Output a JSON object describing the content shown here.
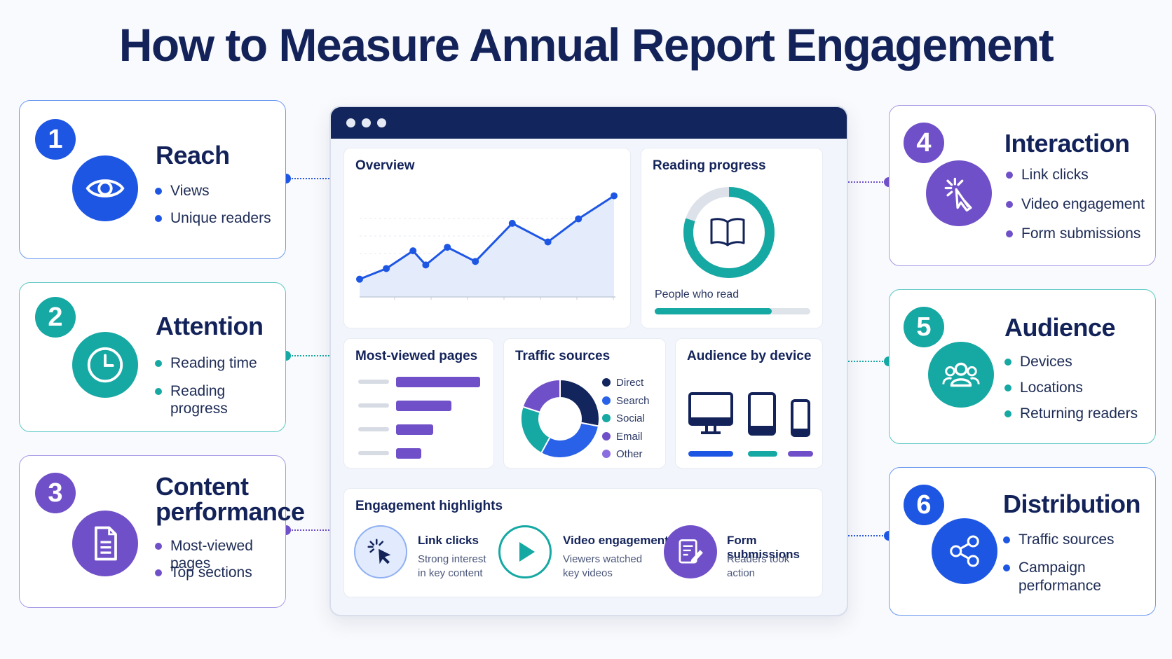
{
  "title": "How to Measure Annual Report Engagement",
  "colors": {
    "navy": "#13235a",
    "blue": "#1e56e4",
    "teal": "#16a8a3",
    "purple": "#7050c8"
  },
  "cards": [
    {
      "number": "1",
      "title": "Reach",
      "icon": "eye-icon",
      "bullets": [
        "Views",
        "Unique readers"
      ]
    },
    {
      "number": "2",
      "title": "Attention",
      "icon": "clock-icon",
      "bullets": [
        "Reading time",
        "Reading progress"
      ]
    },
    {
      "number": "3",
      "title_lines": [
        "Content",
        "performance"
      ],
      "icon": "document-icon",
      "bullets": [
        "Most-viewed pages",
        "Top sections"
      ]
    },
    {
      "number": "4",
      "title": "Interaction",
      "icon": "cursor-click-icon",
      "bullets": [
        "Link clicks",
        "Video engagement",
        "Form submissions"
      ]
    },
    {
      "number": "5",
      "title": "Audience",
      "icon": "users-icon",
      "bullets": [
        "Devices",
        "Locations",
        "Returning readers"
      ]
    },
    {
      "number": "6",
      "title": "Distribution",
      "icon": "share-icon",
      "bullets": [
        "Traffic sources",
        "Campaign",
        "performance"
      ]
    }
  ],
  "dashboard": {
    "overview": {
      "title": "Overview",
      "chart_data": {
        "type": "area",
        "values": [
          2,
          3.2,
          5.2,
          3.6,
          5.6,
          4,
          8.3,
          6.2,
          8.8,
          11.4
        ],
        "color": "#1e56e4"
      }
    },
    "reading_progress": {
      "title": "Reading progress",
      "progress": 0.8,
      "label": "People who read",
      "bar_fill": 0.75,
      "icon": "book-icon"
    },
    "most_viewed": {
      "title": "Most-viewed pages",
      "bars": [
        1.0,
        0.66,
        0.44,
        0.3
      ]
    },
    "traffic": {
      "title": "Traffic sources",
      "chart_data": {
        "type": "pie",
        "slices": [
          {
            "label": "Direct",
            "value": 28,
            "color": "#12255c"
          },
          {
            "label": "Search",
            "value": 30,
            "color": "#2962e8"
          },
          {
            "label": "Social",
            "value": 22,
            "color": "#16a8a3"
          },
          {
            "label": "Email",
            "value": 20,
            "color": "#7050c8"
          },
          {
            "label": "Other",
            "value": 0,
            "color": "#8a6de0"
          }
        ]
      }
    },
    "devices": {
      "title": "Audience by device",
      "icons": [
        "desktop-icon",
        "tablet-icon",
        "phone-icon"
      ],
      "bar_colors": [
        "#1e56e4",
        "#16a8a3",
        "#7050c8"
      ]
    },
    "highlights": {
      "title": "Engagement highlights",
      "items": [
        {
          "title": "Link clicks",
          "sub": [
            "Strong interest",
            "in key content"
          ],
          "icon": "cursor-click-icon"
        },
        {
          "title": "Video engagement",
          "sub": [
            "Viewers watched",
            "key videos"
          ],
          "icon": "play-icon"
        },
        {
          "title": "Form submissions",
          "sub": [
            "Readers took",
            "action"
          ],
          "icon": "edit-form-icon"
        }
      ]
    }
  }
}
